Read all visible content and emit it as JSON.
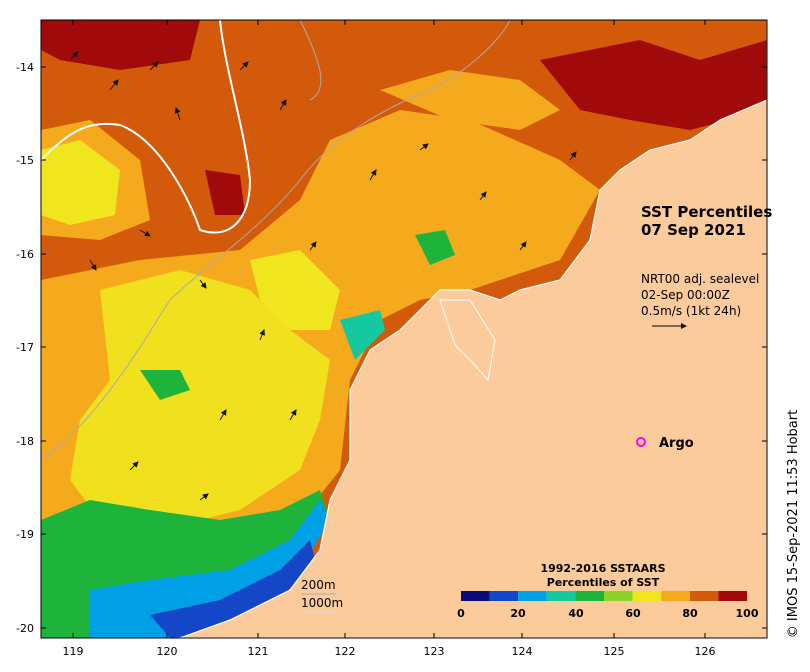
{
  "title": {
    "line1": "SST Percentiles",
    "line2": "07 Sep 2021"
  },
  "sealevel": {
    "line1": "NRT00 adj. sealevel",
    "line2": "02-Sep 00:00Z",
    "line3": "0.5m/s (1kt 24h)"
  },
  "argo_label": "Argo",
  "depth_labels": {
    "d200": "200m",
    "d1000": "1000m"
  },
  "credit": "© IMOS 15-Sep-2021 11:53 Hobart",
  "colorbar": {
    "title1": "1992-2016 SSTAARS",
    "title2": "Percentiles of SST",
    "ticks": [
      "0",
      "20",
      "40",
      "60",
      "80",
      "100"
    ],
    "colors": [
      "#0a0a78",
      "#1446c8",
      "#00a0e6",
      "#16c8a0",
      "#1eb43c",
      "#8cd228",
      "#f0e61e",
      "#f5aa1e",
      "#d25a0a",
      "#a00a0a"
    ]
  },
  "axes": {
    "lat_ticks": [
      "-14",
      "-15",
      "-16",
      "-17",
      "-18",
      "-19",
      "-20"
    ],
    "lon_ticks": [
      "119",
      "120",
      "121",
      "122",
      "123",
      "124",
      "125",
      "126"
    ]
  },
  "palette": {
    "land": "#fccb9c",
    "ocean_warm": "#d25a0a",
    "ocean_mid": "#f5aa1e",
    "ocean_cool": "#f0e61e",
    "argo": "#ff00ff"
  }
}
